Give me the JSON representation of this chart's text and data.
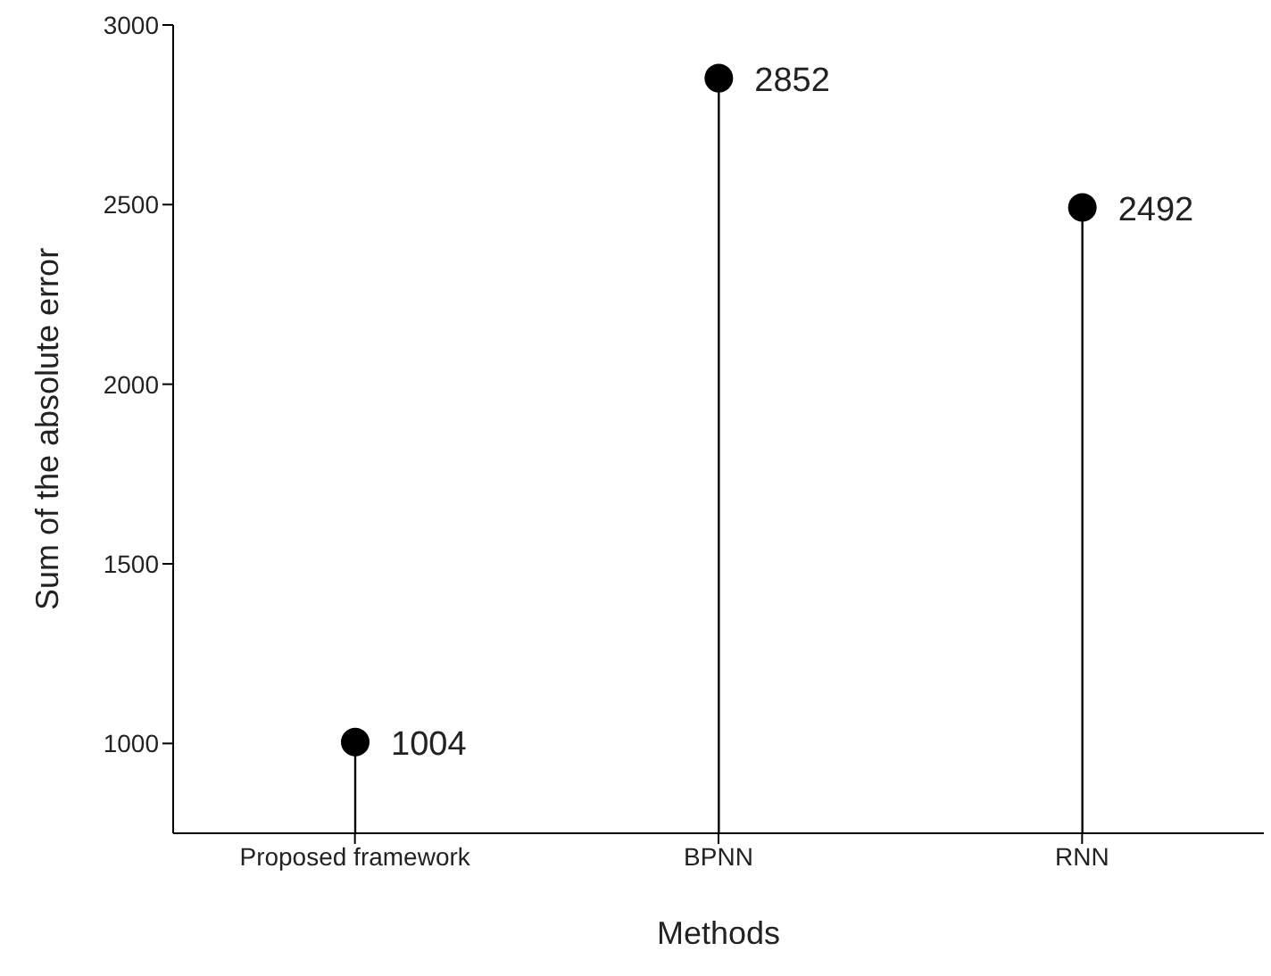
{
  "chart_data": {
    "type": "lollipop",
    "xlabel": "Methods",
    "ylabel": "Sum of the absolute error",
    "categories": [
      "Proposed framework",
      "BPNN",
      "RNN"
    ],
    "values": [
      1004,
      2852,
      2492
    ],
    "color": "#000000",
    "marker": "circle",
    "data_labels": true,
    "ylim": [
      750,
      3000
    ],
    "yticks": [
      1000,
      1500,
      2000,
      2500,
      3000
    ],
    "legend": false
  }
}
